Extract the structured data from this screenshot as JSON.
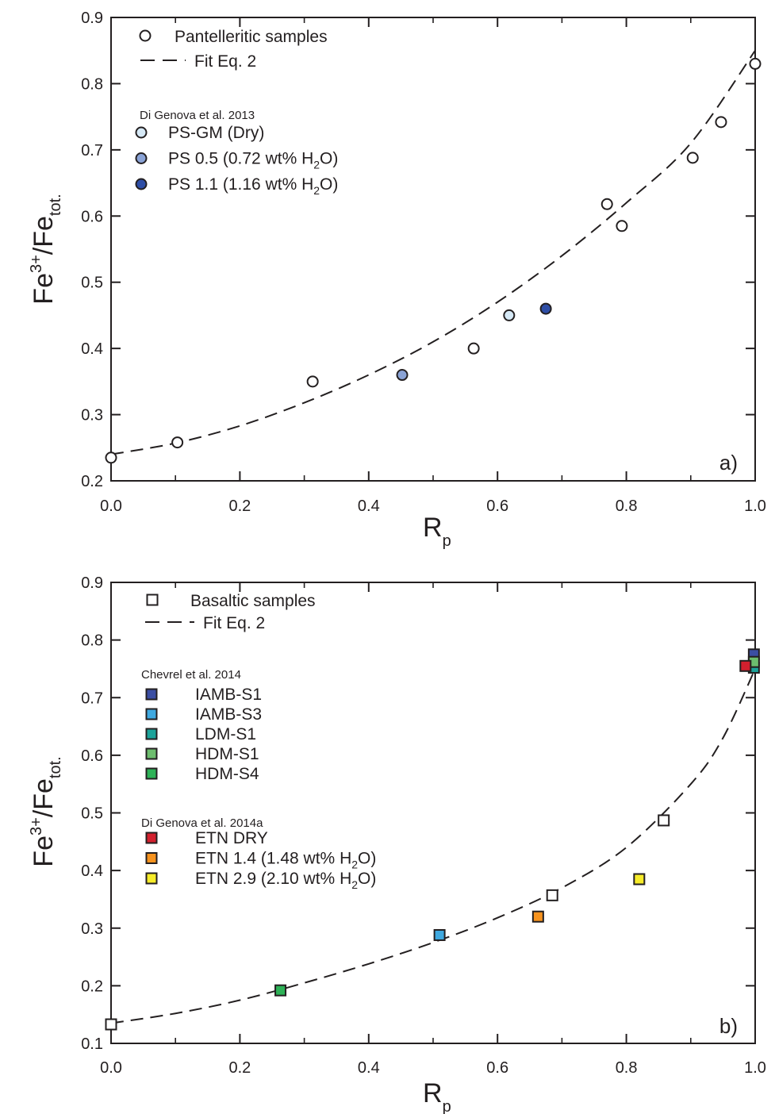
{
  "chart_data": [
    {
      "type": "scatter",
      "panel_label": "a)",
      "xlabel": "R",
      "xlabel_sub": "p",
      "ylabel": "Fe",
      "ylabel_sup": "3+",
      "ylabel_rest": "/Fe",
      "ylabel_sub": "tot.",
      "xlim": [
        0.0,
        1.0
      ],
      "ylim": [
        0.2,
        0.9
      ],
      "xticks": [
        "0.0",
        "0.2",
        "0.4",
        "0.6",
        "0.8",
        "1.0"
      ],
      "yticks": [
        "0.2",
        "0.3",
        "0.4",
        "0.5",
        "0.6",
        "0.7",
        "0.8",
        "0.9"
      ],
      "grid": false,
      "legend": {
        "placement": "top-left",
        "main": [
          {
            "label": "Pantelleritic samples",
            "marker": "circle",
            "fill": "#ffffff"
          },
          {
            "label": "Fit Eq. 2",
            "marker": "dashed-line"
          }
        ],
        "group_title": "Di Genova et al. 2013",
        "groups": [
          {
            "pre": "PS-GM (Dry)",
            "sub": "",
            "post": "",
            "marker": "circle",
            "fill": "#d6e9f6"
          },
          {
            "pre": "PS 0.5 (0.72 wt% H",
            "sub": "2",
            "post": "O)",
            "marker": "circle",
            "fill": "#8aa3d6"
          },
          {
            "pre": "PS 1.1 (1.16 wt% H",
            "sub": "2",
            "post": "O)",
            "marker": "circle",
            "fill": "#2e4ea6"
          }
        ]
      },
      "series": [
        {
          "name": "Pantelleritic samples",
          "marker": "circle",
          "fill": "#ffffff",
          "x": [
            0.0,
            0.103,
            0.313,
            0.563,
            0.77,
            0.793,
            0.903,
            0.947,
            1.0
          ],
          "y": [
            0.235,
            0.258,
            0.35,
            0.4,
            0.618,
            0.585,
            0.688,
            0.742,
            0.83
          ]
        },
        {
          "name": "PS-GM (Dry)",
          "marker": "circle",
          "fill": "#d6e9f6",
          "x": [
            0.618
          ],
          "y": [
            0.45
          ]
        },
        {
          "name": "PS 0.5 (0.72 wt% H2O)",
          "marker": "circle",
          "fill": "#8aa3d6",
          "x": [
            0.452
          ],
          "y": [
            0.36
          ]
        },
        {
          "name": "PS 1.1 (1.16 wt% H2O)",
          "marker": "circle",
          "fill": "#2e4ea6",
          "x": [
            0.675
          ],
          "y": [
            0.46
          ]
        }
      ],
      "fit": {
        "name": "Fit Eq. 2",
        "style": "dashed",
        "x": [
          0.0,
          0.1,
          0.2,
          0.3,
          0.4,
          0.5,
          0.6,
          0.7,
          0.8,
          0.9,
          1.0
        ],
        "y": [
          0.24,
          0.257,
          0.283,
          0.318,
          0.36,
          0.41,
          0.47,
          0.54,
          0.62,
          0.71,
          0.85
        ]
      }
    },
    {
      "type": "scatter",
      "panel_label": "b)",
      "xlabel": "R",
      "xlabel_sub": "p",
      "ylabel": "Fe",
      "ylabel_sup": "3+",
      "ylabel_rest": "/Fe",
      "ylabel_sub": "tot.",
      "xlim": [
        0.0,
        1.0
      ],
      "ylim": [
        0.1,
        0.9
      ],
      "xticks": [
        "0.0",
        "0.2",
        "0.4",
        "0.6",
        "0.8",
        "1.0"
      ],
      "yticks": [
        "0.1",
        "0.2",
        "0.3",
        "0.4",
        "0.5",
        "0.6",
        "0.7",
        "0.8",
        "0.9"
      ],
      "grid": false,
      "legend": {
        "placement": "top-left",
        "main": [
          {
            "label": "Basaltic samples",
            "marker": "square",
            "fill": "#ffffff"
          },
          {
            "label": "Fit Eq. 2",
            "marker": "dashed-line"
          }
        ],
        "group1_title": "Chevrel et al. 2014",
        "group1": [
          {
            "pre": "IAMB-S1",
            "sub": "",
            "post": "",
            "marker": "square",
            "fill": "#3b4ea3"
          },
          {
            "pre": "IAMB-S3",
            "sub": "",
            "post": "",
            "marker": "square",
            "fill": "#3fa9e0"
          },
          {
            "pre": "LDM-S1",
            "sub": "",
            "post": "",
            "marker": "square",
            "fill": "#1ca39a"
          },
          {
            "pre": "HDM-S1",
            "sub": "",
            "post": "",
            "marker": "square",
            "fill": "#6dbd6e"
          },
          {
            "pre": "HDM-S4",
            "sub": "",
            "post": "",
            "marker": "square",
            "fill": "#2eb257"
          }
        ],
        "group2_title": "Di Genova et al. 2014a",
        "group2": [
          {
            "pre": "ETN DRY",
            "sub": "",
            "post": "",
            "marker": "square",
            "fill": "#d3202e"
          },
          {
            "pre": "ETN 1.4 (1.48 wt% H",
            "sub": "2",
            "post": "O)",
            "marker": "square",
            "fill": "#f7931e"
          },
          {
            "pre": "ETN 2.9 (2.10 wt% H",
            "sub": "2",
            "post": "O)",
            "marker": "square",
            "fill": "#f7ec2a"
          }
        ]
      },
      "series": [
        {
          "name": "Basaltic samples",
          "marker": "square",
          "fill": "#ffffff",
          "x": [
            0.0,
            0.685,
            0.858
          ],
          "y": [
            0.133,
            0.357,
            0.487
          ]
        },
        {
          "name": "IAMB-S1",
          "marker": "square",
          "fill": "#3b4ea3",
          "x": [
            0.998
          ],
          "y": [
            0.775
          ]
        },
        {
          "name": "IAMB-S3",
          "marker": "square",
          "fill": "#3fa9e0",
          "x": [
            0.51
          ],
          "y": [
            0.288
          ]
        },
        {
          "name": "LDM-S1",
          "marker": "square",
          "fill": "#1ca39a",
          "x": [
            0.998
          ],
          "y": [
            0.752
          ]
        },
        {
          "name": "HDM-S1",
          "marker": "square",
          "fill": "#6dbd6e",
          "x": [
            0.998
          ],
          "y": [
            0.762
          ]
        },
        {
          "name": "HDM-S4",
          "marker": "square",
          "fill": "#2eb257",
          "x": [
            0.263
          ],
          "y": [
            0.192
          ]
        },
        {
          "name": "ETN DRY",
          "marker": "square",
          "fill": "#d3202e",
          "x": [
            0.985
          ],
          "y": [
            0.755
          ]
        },
        {
          "name": "ETN 1.4 (1.48 wt% H2O)",
          "marker": "square",
          "fill": "#f7931e",
          "x": [
            0.663
          ],
          "y": [
            0.32
          ]
        },
        {
          "name": "ETN 2.9 (2.10 wt% H2O)",
          "marker": "square",
          "fill": "#f7ec2a",
          "x": [
            0.82
          ],
          "y": [
            0.385
          ]
        }
      ],
      "fit": {
        "name": "Fit Eq. 2",
        "style": "dashed",
        "x": [
          0.0,
          0.1,
          0.2,
          0.3,
          0.4,
          0.5,
          0.6,
          0.7,
          0.8,
          0.9,
          0.95,
          1.0
        ],
        "y": [
          0.135,
          0.152,
          0.175,
          0.205,
          0.238,
          0.275,
          0.318,
          0.37,
          0.44,
          0.55,
          0.63,
          0.75
        ]
      }
    }
  ]
}
